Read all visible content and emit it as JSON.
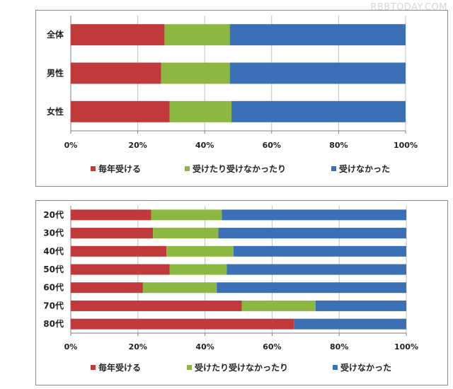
{
  "watermark": "RBBTODAY.COM",
  "colors": {
    "every_year": "#c0393b",
    "sometimes": "#8cb842",
    "never": "#3b6fb6",
    "grid": "#bfbfbf",
    "axis": "#7f7f7f"
  },
  "chart_data": [
    {
      "type": "bar",
      "orientation": "horizontal",
      "stacked": true,
      "categories": [
        "全体",
        "男性",
        "女性"
      ],
      "series": [
        {
          "name": "毎年受ける",
          "values": [
            28,
            27,
            29.5
          ]
        },
        {
          "name": "受けたり受けなかったり",
          "values": [
            19.5,
            20.5,
            18.5
          ]
        },
        {
          "name": "受けなかった",
          "values": [
            52.5,
            52.5,
            52
          ]
        }
      ],
      "x_ticks": [
        "0%",
        "20%",
        "40%",
        "60%",
        "80%",
        "100%"
      ],
      "xlim": [
        0,
        100
      ],
      "grid": true,
      "legend_position": "bottom"
    },
    {
      "type": "bar",
      "orientation": "horizontal",
      "stacked": true,
      "categories": [
        "20代",
        "30代",
        "40代",
        "50代",
        "60代",
        "70代",
        "80代"
      ],
      "series": [
        {
          "name": "毎年受ける",
          "values": [
            24,
            24.5,
            28.5,
            29.5,
            21.5,
            51,
            66.5
          ]
        },
        {
          "name": "受けたり受けなかったり",
          "values": [
            21,
            19.5,
            20,
            17,
            22,
            22,
            0
          ]
        },
        {
          "name": "受けなかった",
          "values": [
            55,
            56,
            51.5,
            53.5,
            56.5,
            27,
            33.5
          ]
        }
      ],
      "x_ticks": [
        "0%",
        "20%",
        "40%",
        "60%",
        "80%",
        "100%"
      ],
      "xlim": [
        0,
        100
      ],
      "grid": true,
      "legend_position": "bottom"
    }
  ]
}
